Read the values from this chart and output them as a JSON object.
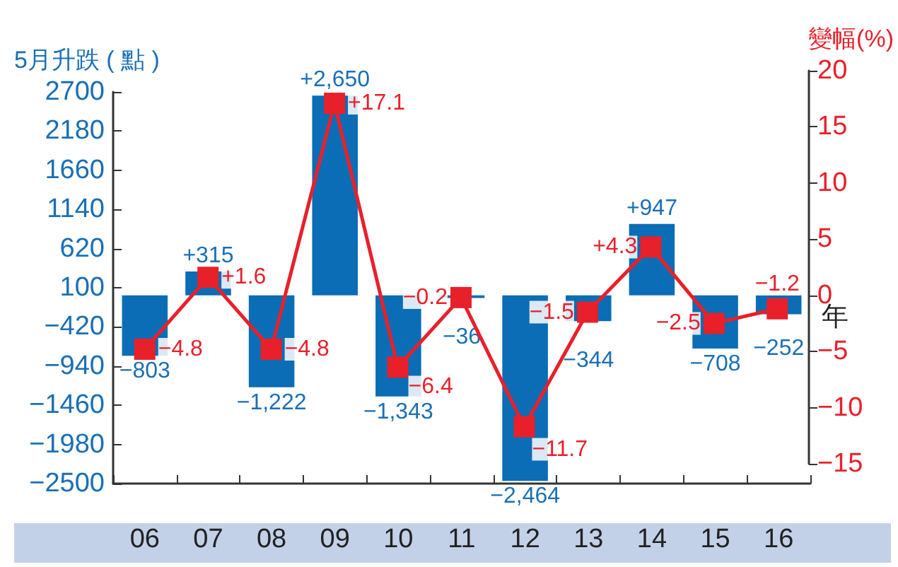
{
  "chart_data": {
    "type": "bar",
    "ylabel": "5月升跌 ( 點 )",
    "y2label": "變幅(%)",
    "xlabel": "年",
    "categories": [
      "06",
      "07",
      "08",
      "09",
      "10",
      "11",
      "12",
      "13",
      "14",
      "15",
      "16"
    ],
    "series": [
      {
        "color": "#0a6db5",
        "values": [
          -803,
          315,
          -1222,
          2650,
          -1343,
          -36,
          -2464,
          -344,
          947,
          -708,
          -252
        ],
        "value_labels": [
          "−803",
          "+315",
          "−1,222",
          "+2,650",
          "−1,343",
          "−36",
          "−2,464",
          "−344",
          "+947",
          "−708",
          "−252"
        ]
      },
      {
        "type": "line",
        "axis": "y2",
        "color": "#e8202a",
        "marker": "square",
        "values": [
          -4.8,
          1.6,
          -4.8,
          17.1,
          -6.4,
          -0.2,
          -11.7,
          -1.5,
          4.3,
          -2.5,
          -1.2
        ],
        "value_labels": [
          "−4.8",
          "+1.6",
          "−4.8",
          "+17.1",
          "−6.4",
          "−0.2",
          "−11.7",
          "−1.5",
          "+4.3",
          "−2.5",
          "−1.2"
        ]
      }
    ],
    "ylim": [
      -2500,
      2700
    ],
    "yticks": [
      -2500,
      -1980,
      -1460,
      -940,
      -420,
      100,
      620,
      1140,
      1660,
      2180,
      2700
    ],
    "y2lim": [
      -15,
      20
    ],
    "y2ticks": [
      -15,
      -10,
      -5,
      0,
      5,
      10,
      15,
      20
    ],
    "grid": false
  }
}
